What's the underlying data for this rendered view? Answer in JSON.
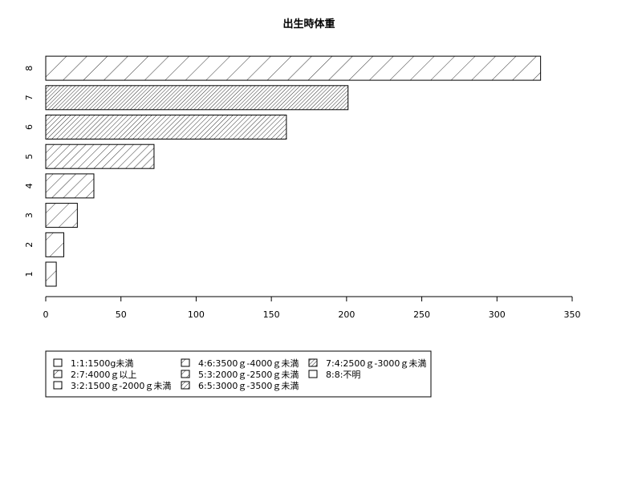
{
  "chart_data": {
    "type": "bar",
    "orientation": "horizontal",
    "title": "出生時体重",
    "xlabel": "",
    "ylabel": "",
    "categories": [
      "1",
      "2",
      "3",
      "4",
      "5",
      "6",
      "7",
      "8"
    ],
    "values": [
      7,
      12,
      21,
      32,
      72,
      160,
      201,
      329
    ],
    "xlim": [
      0,
      350
    ],
    "xticks": [
      "0",
      "50",
      "100",
      "150",
      "200",
      "250",
      "300",
      "350"
    ],
    "grid": false,
    "legend_placement": "bottom",
    "legend": [
      "1:1:1500g未満",
      "2:7:4000ｇ以上",
      "3:2:1500ｇ-2000ｇ未満",
      "4:6:3500ｇ-4000ｇ未満",
      "5:3:2000ｇ-2500ｇ未満",
      "6:5:3000ｇ-3500ｇ未満",
      "7:4:2500ｇ-3000ｇ未満",
      "8:8:不明"
    ]
  }
}
